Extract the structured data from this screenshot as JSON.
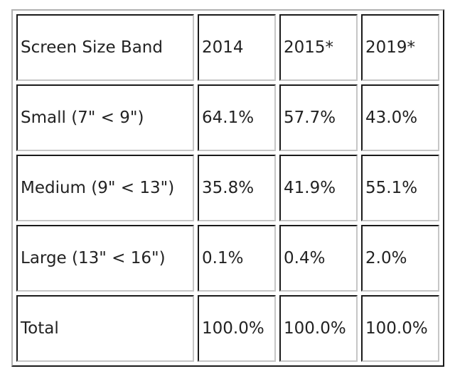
{
  "chart_data": {
    "type": "table",
    "header": [
      "Screen Size Band",
      "2014",
      "2015*",
      "2019*"
    ],
    "rows": [
      [
        "Small (7\" < 9\")",
        "64.1%",
        "57.7%",
        "43.0%"
      ],
      [
        "Medium (9\" < 13\")",
        "35.8%",
        "41.9%",
        "55.1%"
      ],
      [
        "Large (13\" < 16\")",
        "0.1%",
        "0.4%",
        "2.0%"
      ],
      [
        "Total",
        "100.0%",
        "100.0%",
        "100.0%"
      ]
    ],
    "categories": [
      "Small (7\" < 9\")",
      "Medium (9\" < 13\")",
      "Large (13\" < 16\")",
      "Total"
    ],
    "series": [
      {
        "name": "2014",
        "unit": "%",
        "values": [
          64.1,
          35.8,
          0.1,
          100.0
        ]
      },
      {
        "name": "2015*",
        "unit": "%",
        "values": [
          57.7,
          41.9,
          0.4,
          100.0
        ]
      },
      {
        "name": "2019*",
        "unit": "%",
        "values": [
          43.0,
          55.1,
          2.0,
          100.0
        ]
      }
    ],
    "row_label_column": "Screen Size Band"
  },
  "colors": {
    "text": "#222222",
    "cell_border_dark": "#1a1a1a",
    "cell_border_light": "#c6c6c6",
    "table_border_light": "#b0b0b0",
    "table_border_dark": "#1a1a1a",
    "background": "#ffffff"
  }
}
